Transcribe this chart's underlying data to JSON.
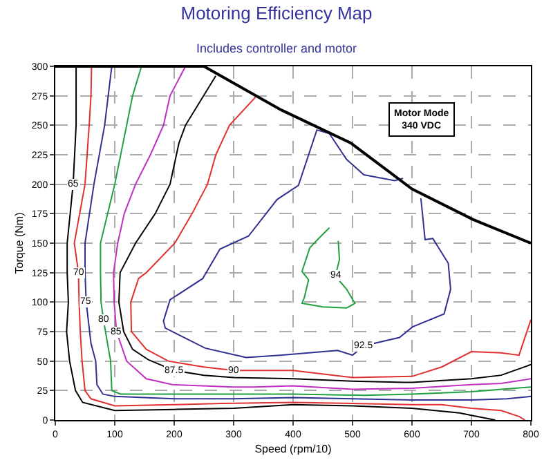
{
  "chart_data": {
    "type": "line",
    "title": "Motoring Efficiency Map",
    "subtitle": "Includes controller and motor",
    "xlabel": "Speed (rpm/10)",
    "ylabel": "Torque (Nm)",
    "xlim": [
      0,
      800
    ],
    "xticks": [
      0,
      100,
      200,
      300,
      400,
      500,
      600,
      700,
      800
    ],
    "ylim": [
      0,
      300
    ],
    "yticks": [
      0,
      25,
      50,
      75,
      100,
      125,
      150,
      175,
      200,
      225,
      250,
      275,
      300
    ],
    "grid": true,
    "legend": false,
    "marker": "none",
    "annotations": [
      "Motor Mode\n340 VDC"
    ],
    "series": [
      {
        "name": "65",
        "color": "#000000",
        "x": [
          35,
          35,
          30,
          20,
          20,
          22,
          19,
          24,
          34,
          46,
          100,
          200,
          300,
          400,
          500,
          600,
          680,
          700,
          740
        ],
        "values": [
          300,
          250,
          200,
          150,
          125,
          100,
          75,
          50,
          25,
          15,
          8,
          9,
          10,
          13,
          12,
          10,
          6,
          4,
          0
        ]
      },
      {
        "name": "70",
        "color": "#e03030",
        "x": [
          61,
          60,
          57,
          50,
          32,
          39,
          40,
          42,
          45,
          50,
          60,
          100,
          200,
          280,
          400,
          500,
          600,
          650,
          700,
          750,
          780,
          790
        ],
        "values": [
          300,
          275,
          250,
          200,
          150,
          125,
          100,
          75,
          50,
          25,
          18,
          12,
          13,
          14,
          15,
          14,
          13,
          13,
          10,
          8,
          3,
          0
        ]
      },
      {
        "name": "75",
        "color": "#303090",
        "x": [
          95,
          83,
          65,
          50,
          50,
          52,
          60,
          68,
          70,
          80,
          100,
          200,
          300,
          400,
          500,
          600,
          700,
          760,
          800
        ],
        "values": [
          300,
          250,
          200,
          150,
          125,
          100,
          65,
          50,
          30,
          22,
          20,
          18,
          18,
          19,
          18,
          17,
          17,
          18,
          20
        ]
      },
      {
        "name": "80",
        "color": "#20a040",
        "x": [
          145,
          130,
          120,
          100,
          76,
          76,
          77,
          81,
          93,
          95,
          110,
          200,
          300,
          400,
          519,
          600,
          700,
          800
        ],
        "values": [
          300,
          275,
          250,
          200,
          150,
          125,
          100,
          85,
          50,
          25,
          22,
          22,
          22,
          22,
          21,
          22,
          24,
          28
        ]
      },
      {
        "name": "85",
        "color": "#c030c0",
        "x": [
          219,
          193,
          182,
          160,
          135,
          116,
          105,
          98,
          99,
          103,
          120,
          153,
          197,
          300,
          333,
          400,
          500,
          600,
          700,
          750,
          800
        ],
        "values": [
          300,
          275,
          250,
          225,
          200,
          175,
          150,
          125,
          100,
          75,
          50,
          35,
          30,
          28,
          28,
          29,
          26,
          27,
          30,
          31,
          35
        ]
      },
      {
        "name": "87.5",
        "color": "#000000",
        "x": [
          270,
          219,
          208,
          193,
          168,
          135,
          109,
          107,
          115,
          130,
          157,
          200,
          250,
          300,
          400,
          500,
          587,
          600,
          700,
          750,
          800
        ],
        "values": [
          292,
          250,
          235,
          200,
          175,
          150,
          125,
          100,
          75,
          60,
          51,
          42,
          38,
          36,
          35,
          33,
          32,
          32,
          35,
          38,
          47
        ]
      },
      {
        "name": "90",
        "color": "#e03030",
        "x": [
          337,
          293,
          270,
          256,
          230,
          201,
          153,
          140,
          127,
          128,
          153,
          190,
          250,
          300,
          400,
          500,
          600,
          650,
          700,
          750,
          780,
          800
        ],
        "values": [
          274,
          250,
          225,
          200,
          175,
          150,
          125,
          120,
          100,
          75,
          60,
          50,
          45,
          42,
          42,
          36,
          37,
          45,
          58,
          57,
          55,
          85
        ]
      },
      {
        "name": "92.5",
        "color": "#303090",
        "x": [
          585,
          571,
          519,
          490,
          461,
          440,
          409,
          373,
          325,
          277,
          248,
          193,
          182,
          185,
          252,
          321,
          378,
          475,
          500,
          519,
          579,
          601,
          654,
          665,
          661,
          635,
          622,
          615
        ],
        "values": [
          205,
          203,
          208,
          221,
          243,
          246,
          199,
          187,
          156,
          145,
          120,
          102,
          84,
          78,
          61,
          53,
          55,
          59,
          55,
          63,
          70,
          79,
          90,
          111,
          133,
          154,
          153,
          188
        ]
      },
      {
        "name": "94",
        "color": "#20a040",
        "x": [
          461,
          445,
          428,
          415,
          426,
          419,
          415,
          450,
          490,
          504,
          490,
          471,
          478,
          476
        ],
        "values": [
          163,
          155,
          146,
          126,
          119,
          104,
          99,
          96,
          95,
          99,
          111,
          122,
          136,
          152
        ]
      },
      {
        "color": "#000000",
        "x": [
          0,
          250,
          380,
          497,
          600,
          703,
          800
        ],
        "values": [
          300,
          300,
          263,
          235,
          196,
          170,
          150
        ]
      }
    ]
  }
}
